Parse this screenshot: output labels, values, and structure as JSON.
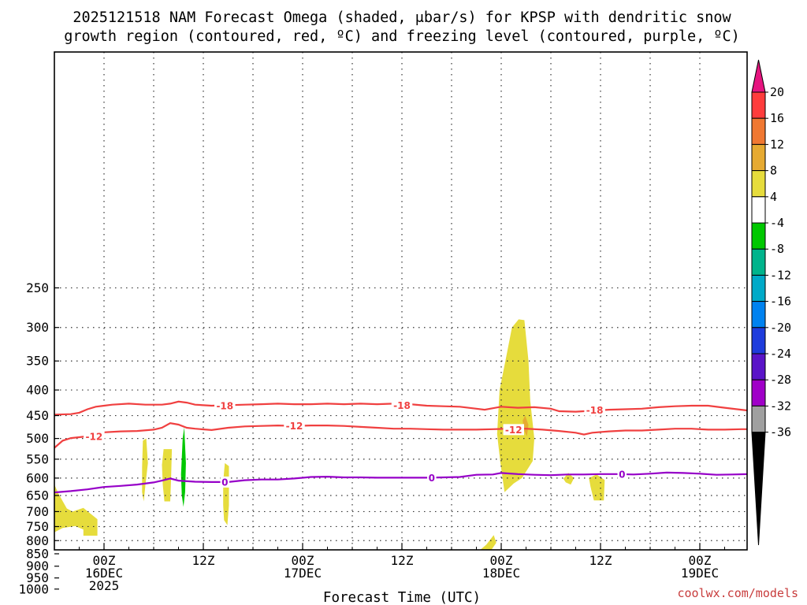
{
  "chart_data": {
    "type": "heatmap",
    "title_line1": "2025121518 NAM Forecast Omega (shaded, μbar/s) for KPSP with dendritic snow",
    "title_line2": "growth region (contoured, red, ºC) and freezing level (contoured, purple, ºC)",
    "xlabel": "Forecast Time (UTC)",
    "credit": "coolwx.com/models",
    "x_hours_range": [
      -6,
      63
    ],
    "y_pressure_range": [
      1050,
      150
    ],
    "y_ticks": [
      250,
      300,
      350,
      400,
      450,
      500,
      550,
      600,
      650,
      700,
      750,
      800,
      850,
      900,
      950,
      1000
    ],
    "x_ticks": [
      {
        "hour": 0,
        "lines": [
          "00Z",
          "16DEC",
          "2025"
        ]
      },
      {
        "hour": 12,
        "lines": [
          "12Z"
        ]
      },
      {
        "hour": 24,
        "lines": [
          "00Z",
          "17DEC"
        ]
      },
      {
        "hour": 36,
        "lines": [
          "12Z"
        ]
      },
      {
        "hour": 48,
        "lines": [
          "00Z",
          "18DEC"
        ]
      },
      {
        "hour": 60,
        "lines": [
          "12Z"
        ]
      },
      {
        "hour": 72,
        "lines": [
          "00Z",
          "19DEC"
        ]
      }
    ],
    "colorbar": {
      "ticks": [
        "20",
        "16",
        "12",
        "8",
        "4",
        "-4",
        "-8",
        "-12",
        "-16",
        "-20",
        "-24",
        "-28",
        "-32",
        "-36"
      ],
      "colors": [
        "#ff3c3c",
        "#f07832",
        "#e6aa32",
        "#e6dc3c",
        "#ffffff",
        "#00c800",
        "#00b48c",
        "#00aac8",
        "#0082f0",
        "#1e3cdc",
        "#5a14c8",
        "#a000c8",
        "#a0a0a0"
      ],
      "top_arrow_color": "#e6147f",
      "bottom_arrow_color": "#000000"
    },
    "ground": {
      "color": "#a0522d",
      "top_pressure": 940
    },
    "contours": [
      {
        "name": "dgz-minus-18",
        "label": "-18",
        "color": "#f04040",
        "points": [
          [
            -6,
            448
          ],
          [
            -4,
            447
          ],
          [
            -3,
            444
          ],
          [
            -2,
            437
          ],
          [
            -1,
            432
          ],
          [
            0,
            430
          ],
          [
            1,
            428
          ],
          [
            3,
            426
          ],
          [
            5,
            428
          ],
          [
            7,
            428
          ],
          [
            8,
            426
          ],
          [
            9,
            422
          ],
          [
            10,
            424
          ],
          [
            11,
            428
          ],
          [
            13,
            430
          ],
          [
            15,
            429
          ],
          [
            17,
            428
          ],
          [
            19,
            427
          ],
          [
            21,
            426
          ],
          [
            23,
            427
          ],
          [
            25,
            427
          ],
          [
            27,
            426
          ],
          [
            29,
            427
          ],
          [
            31,
            426
          ],
          [
            33,
            427
          ],
          [
            35,
            426
          ],
          [
            37,
            427
          ],
          [
            39,
            430
          ],
          [
            41,
            431
          ],
          [
            43,
            432
          ],
          [
            45,
            436
          ],
          [
            46,
            438
          ],
          [
            47,
            435
          ],
          [
            48,
            432
          ],
          [
            50,
            434
          ],
          [
            52,
            433
          ],
          [
            54,
            436
          ],
          [
            55,
            441
          ],
          [
            57,
            442
          ],
          [
            59,
            440
          ],
          [
            61,
            438
          ],
          [
            63,
            437
          ],
          [
            65,
            436
          ],
          [
            67,
            433
          ],
          [
            69,
            431
          ],
          [
            71,
            430
          ],
          [
            73,
            430
          ],
          [
            75,
            434
          ],
          [
            77,
            438
          ],
          [
            78,
            440
          ]
        ],
        "label_positions": [
          [
            14.6,
            430
          ],
          [
            36,
            429
          ],
          [
            59.3,
            439
          ]
        ]
      },
      {
        "name": "dgz-minus-12",
        "label": "-12",
        "color": "#f04040",
        "points": [
          [
            -6,
            522
          ],
          [
            -5,
            505
          ],
          [
            -4,
            499
          ],
          [
            -3,
            497
          ],
          [
            -2,
            495
          ],
          [
            -1,
            492
          ],
          [
            0,
            486
          ],
          [
            2,
            484
          ],
          [
            4,
            483
          ],
          [
            6,
            480
          ],
          [
            7,
            476
          ],
          [
            8,
            466
          ],
          [
            9,
            469
          ],
          [
            10,
            476
          ],
          [
            11,
            478
          ],
          [
            13,
            481
          ],
          [
            15,
            476
          ],
          [
            17,
            473
          ],
          [
            19,
            472
          ],
          [
            21,
            471
          ],
          [
            23,
            472
          ],
          [
            25,
            471
          ],
          [
            27,
            471
          ],
          [
            29,
            472
          ],
          [
            31,
            474
          ],
          [
            33,
            476
          ],
          [
            35,
            478
          ],
          [
            37,
            478
          ],
          [
            39,
            479
          ],
          [
            41,
            480
          ],
          [
            43,
            480
          ],
          [
            45,
            480
          ],
          [
            47,
            479
          ],
          [
            49,
            478
          ],
          [
            51,
            478
          ],
          [
            53,
            480
          ],
          [
            55,
            483
          ],
          [
            57,
            487
          ],
          [
            58,
            491
          ],
          [
            59,
            487
          ],
          [
            61,
            484
          ],
          [
            63,
            482
          ],
          [
            65,
            482
          ],
          [
            67,
            480
          ],
          [
            69,
            478
          ],
          [
            71,
            478
          ],
          [
            73,
            480
          ],
          [
            75,
            480
          ],
          [
            77,
            479
          ],
          [
            78,
            479
          ]
        ],
        "label_positions": [
          [
            -1.2,
            495
          ],
          [
            23,
            472
          ],
          [
            49.5,
            480
          ]
        ]
      },
      {
        "name": "freezing-level-0",
        "label": "0",
        "color": "#9600c8",
        "points": [
          [
            -6,
            641
          ],
          [
            -4,
            637
          ],
          [
            -2,
            632
          ],
          [
            0,
            625
          ],
          [
            2,
            622
          ],
          [
            4,
            618
          ],
          [
            6,
            612
          ],
          [
            7,
            607
          ],
          [
            8,
            601
          ],
          [
            9,
            607
          ],
          [
            11,
            610
          ],
          [
            13,
            611
          ],
          [
            15,
            611
          ],
          [
            17,
            606
          ],
          [
            19,
            604
          ],
          [
            21,
            604
          ],
          [
            23,
            601
          ],
          [
            25,
            597
          ],
          [
            27,
            596
          ],
          [
            29,
            598
          ],
          [
            31,
            598
          ],
          [
            33,
            599
          ],
          [
            35,
            599
          ],
          [
            37,
            599
          ],
          [
            39,
            599
          ],
          [
            41,
            598
          ],
          [
            43,
            597
          ],
          [
            45,
            591
          ],
          [
            47,
            590
          ],
          [
            48,
            586
          ],
          [
            50,
            589
          ],
          [
            52,
            591
          ],
          [
            54,
            592
          ],
          [
            56,
            590
          ],
          [
            58,
            590
          ],
          [
            60,
            589
          ],
          [
            62,
            589
          ],
          [
            64,
            590
          ],
          [
            66,
            588
          ],
          [
            68,
            585
          ],
          [
            70,
            586
          ],
          [
            72,
            588
          ],
          [
            74,
            591
          ],
          [
            76,
            590
          ],
          [
            78,
            589
          ]
        ],
        "label_positions": [
          [
            14.6,
            611
          ],
          [
            39.6,
            599
          ],
          [
            62.6,
            589
          ]
        ]
      }
    ],
    "shaded_regions": [
      {
        "name": "omega-plus-4-tower-18dec",
        "band": "4 to 8",
        "points": [
          [
            47.5,
            490
          ],
          [
            47.8,
            400
          ],
          [
            48.5,
            350
          ],
          [
            49.3,
            300
          ],
          [
            50.1,
            289
          ],
          [
            50.8,
            290
          ],
          [
            51.3,
            350
          ],
          [
            51.5,
            420
          ],
          [
            52,
            500
          ],
          [
            51.8,
            555
          ],
          [
            50.5,
            600
          ],
          [
            49.5,
            615
          ],
          [
            48.4,
            640
          ],
          [
            47.9,
            560
          ]
        ]
      },
      {
        "name": "omega-plus-8-core-18dec",
        "band": "8 to 12",
        "points": [
          [
            50.6,
            460
          ],
          [
            50.9,
            450
          ],
          [
            51.3,
            470
          ],
          [
            51.1,
            495
          ],
          [
            50.7,
            480
          ]
        ]
      },
      {
        "name": "omega-plus-4-low-left",
        "band": "4 to 8",
        "points": [
          [
            -6,
            618
          ],
          [
            -5.5,
            645
          ],
          [
            -4.5,
            690
          ],
          [
            -3.8,
            700
          ],
          [
            -2.5,
            688
          ],
          [
            -0.8,
            725
          ],
          [
            -0.8,
            782
          ],
          [
            -2.5,
            782
          ],
          [
            -2.5,
            760
          ],
          [
            -3.5,
            748
          ],
          [
            -5,
            755
          ],
          [
            -6,
            770
          ]
        ]
      },
      {
        "name": "omega-plus-4-strip-a",
        "band": "4 to 8",
        "points": [
          [
            4.6,
            570
          ],
          [
            4.7,
            505
          ],
          [
            5.1,
            500
          ],
          [
            5.3,
            560
          ],
          [
            5.0,
            620
          ],
          [
            4.8,
            668
          ],
          [
            4.6,
            640
          ]
        ]
      },
      {
        "name": "omega-plus-4-strip-b",
        "band": "4 to 8",
        "points": [
          [
            7.0,
            565
          ],
          [
            7.2,
            525
          ],
          [
            8.2,
            525
          ],
          [
            8.1,
            600
          ],
          [
            8.0,
            668
          ],
          [
            7.3,
            668
          ],
          [
            7.1,
            620
          ]
        ]
      },
      {
        "name": "omega-plus-4-strip-c",
        "band": "4 to 8",
        "points": [
          [
            14.4,
            610
          ],
          [
            14.6,
            560
          ],
          [
            15.1,
            568
          ],
          [
            15.1,
            680
          ],
          [
            14.9,
            745
          ],
          [
            14.5,
            728
          ],
          [
            14.4,
            680
          ]
        ]
      },
      {
        "name": "omega-plus-4-lower-blob",
        "band": "4 to 8",
        "points": [
          [
            44.6,
            875
          ],
          [
            44.8,
            853
          ],
          [
            46.2,
            815
          ],
          [
            47.1,
            780
          ],
          [
            47.4,
            808
          ],
          [
            46.6,
            845
          ],
          [
            45.8,
            860
          ]
        ]
      },
      {
        "name": "omega-plus-4-blob-d",
        "band": "4 to 8",
        "points": [
          [
            55.5,
            602
          ],
          [
            56.1,
            586
          ],
          [
            56.8,
            600
          ],
          [
            56.4,
            618
          ],
          [
            55.8,
            612
          ]
        ]
      },
      {
        "name": "omega-plus-4-blob-e",
        "band": "4 to 8",
        "points": [
          [
            58.6,
            600
          ],
          [
            59.5,
            590
          ],
          [
            60.5,
            605
          ],
          [
            60.4,
            665
          ],
          [
            59.2,
            665
          ],
          [
            58.8,
            625
          ]
        ]
      },
      {
        "name": "omega-plus-4-surface-band",
        "band": "4 to 8",
        "points": [
          [
            25,
            943
          ],
          [
            30,
            940
          ],
          [
            33,
            933
          ],
          [
            37,
            928
          ],
          [
            41,
            926
          ],
          [
            43,
            921
          ],
          [
            44.7,
            917
          ],
          [
            46,
            931
          ],
          [
            48,
            940
          ],
          [
            52,
            943
          ],
          [
            56,
            940
          ],
          [
            25,
            945
          ]
        ]
      },
      {
        "name": "omega-minus-4-vertical-strip",
        "band": "-4 to -8",
        "points": [
          [
            9.3,
            590
          ],
          [
            9.5,
            500
          ],
          [
            9.7,
            475
          ],
          [
            9.9,
            560
          ],
          [
            9.8,
            640
          ],
          [
            9.6,
            685
          ],
          [
            9.4,
            650
          ]
        ]
      },
      {
        "name": "omega-minus-4-low-left",
        "band": "-4 to -8",
        "points": [
          [
            -6,
            889
          ],
          [
            -5.1,
            889
          ],
          [
            -5,
            905
          ],
          [
            -3.6,
            925
          ],
          [
            -3.6,
            940
          ],
          [
            -6,
            940
          ]
        ]
      },
      {
        "name": "omega-minus-4-spot-a",
        "band": "-4 to -8",
        "points": [
          [
            60.0,
            895
          ],
          [
            61.1,
            895
          ],
          [
            61.1,
            912
          ],
          [
            60.0,
            912
          ]
        ]
      },
      {
        "name": "omega-minus-4-spot-b",
        "band": "-4 to -8",
        "points": [
          [
            63.5,
            915
          ],
          [
            63.8,
            905
          ],
          [
            64.8,
            905
          ],
          [
            65.2,
            920
          ],
          [
            66.5,
            924
          ],
          [
            63.5,
            924
          ]
        ]
      }
    ]
  }
}
